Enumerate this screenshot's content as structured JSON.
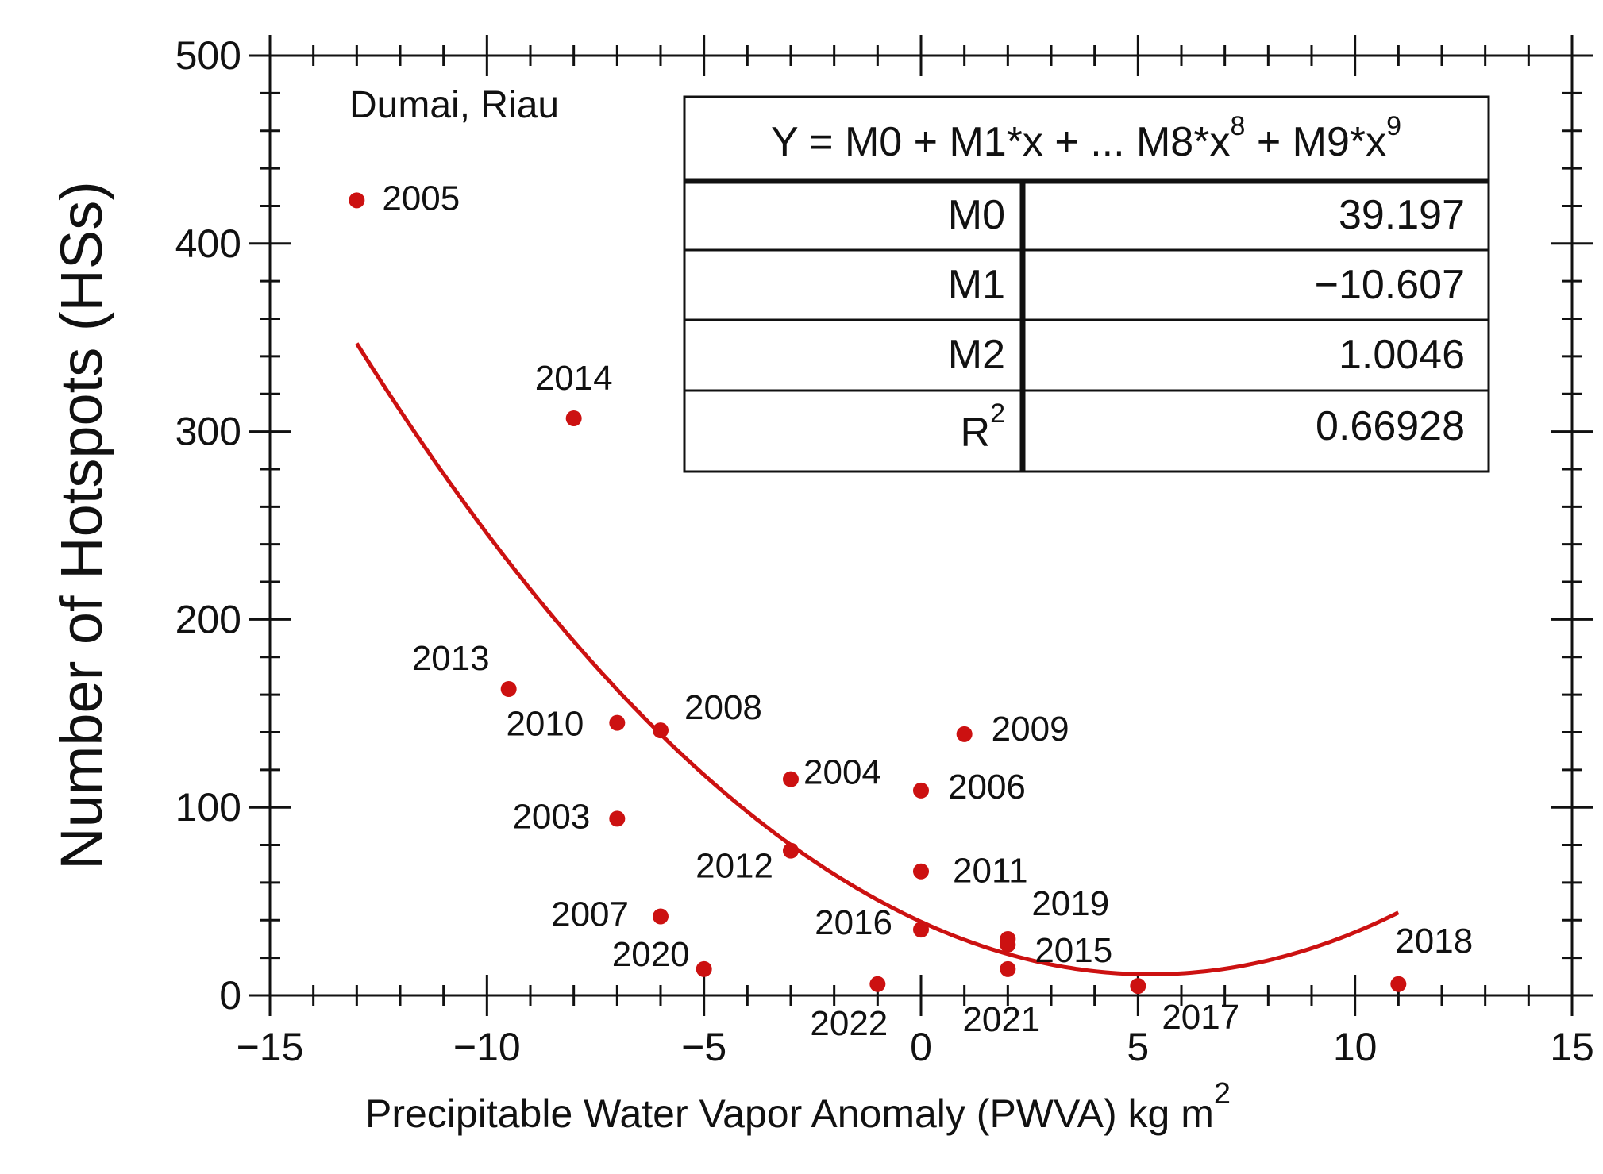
{
  "chart_data": {
    "type": "scatter",
    "location_label": "Dumai, Riau",
    "xlabel": "Precipitable Water Vapor Anomaly (PWVA)   kg m",
    "xlabel_superscript": "2",
    "ylabel": "Number of Hotspots (HSs)",
    "xlim": [
      -15,
      15
    ],
    "ylim": [
      0,
      500
    ],
    "x_ticks": [
      -15,
      -10,
      -5,
      0,
      5,
      10,
      15
    ],
    "x_tick_labels": [
      "−15",
      "−10",
      "−5",
      "0",
      "5",
      "10",
      "15"
    ],
    "y_ticks": [
      0,
      100,
      200,
      300,
      400,
      500
    ],
    "y_tick_labels": [
      "0",
      "100",
      "200",
      "300",
      "400",
      "500"
    ],
    "grid": false,
    "colors": {
      "points": "#cc1111",
      "fit": "#cc1111",
      "axis": "#111111"
    },
    "points": [
      {
        "label": "2005",
        "x": -13,
        "y": 423
      },
      {
        "label": "2014",
        "x": -8,
        "y": 307
      },
      {
        "label": "2013",
        "x": -9.5,
        "y": 163
      },
      {
        "label": "2010",
        "x": -7,
        "y": 145
      },
      {
        "label": "2008",
        "x": -6,
        "y": 141
      },
      {
        "label": "2009",
        "x": 1,
        "y": 139
      },
      {
        "label": "2004",
        "x": -3,
        "y": 115
      },
      {
        "label": "2006",
        "x": 0,
        "y": 109
      },
      {
        "label": "2003",
        "x": -7,
        "y": 94
      },
      {
        "label": "2012",
        "x": -3,
        "y": 77
      },
      {
        "label": "2011",
        "x": 0,
        "y": 66
      },
      {
        "label": "2007",
        "x": -6,
        "y": 42
      },
      {
        "label": "2016",
        "x": 0,
        "y": 35
      },
      {
        "label": "2019",
        "x": 2,
        "y": 30
      },
      {
        "label": "2015",
        "x": 2,
        "y": 27
      },
      {
        "label": "2020",
        "x": -5,
        "y": 14
      },
      {
        "label": "2021",
        "x": 2,
        "y": 14
      },
      {
        "label": "2022",
        "x": -1,
        "y": 6
      },
      {
        "label": "2017",
        "x": 5,
        "y": 5
      },
      {
        "label": "2018",
        "x": 11,
        "y": 6
      }
    ],
    "fit": {
      "type": "polynomial",
      "x_range": [
        -13,
        11
      ],
      "coefficients": {
        "M0": 39.197,
        "M1": -10.607,
        "M2": 1.0046
      }
    },
    "table": {
      "header": "Y = M0 + M1*x + ... M8*x",
      "header_exp1": "8",
      "header_mid": " + M9*x",
      "header_exp2": "9",
      "rows": [
        {
          "name": "M0",
          "value": "39.197"
        },
        {
          "name": "M1",
          "value": "−10.607"
        },
        {
          "name": "M2",
          "value": "1.0046"
        },
        {
          "name": "R",
          "sup": "2",
          "value": "0.66928"
        }
      ]
    }
  }
}
